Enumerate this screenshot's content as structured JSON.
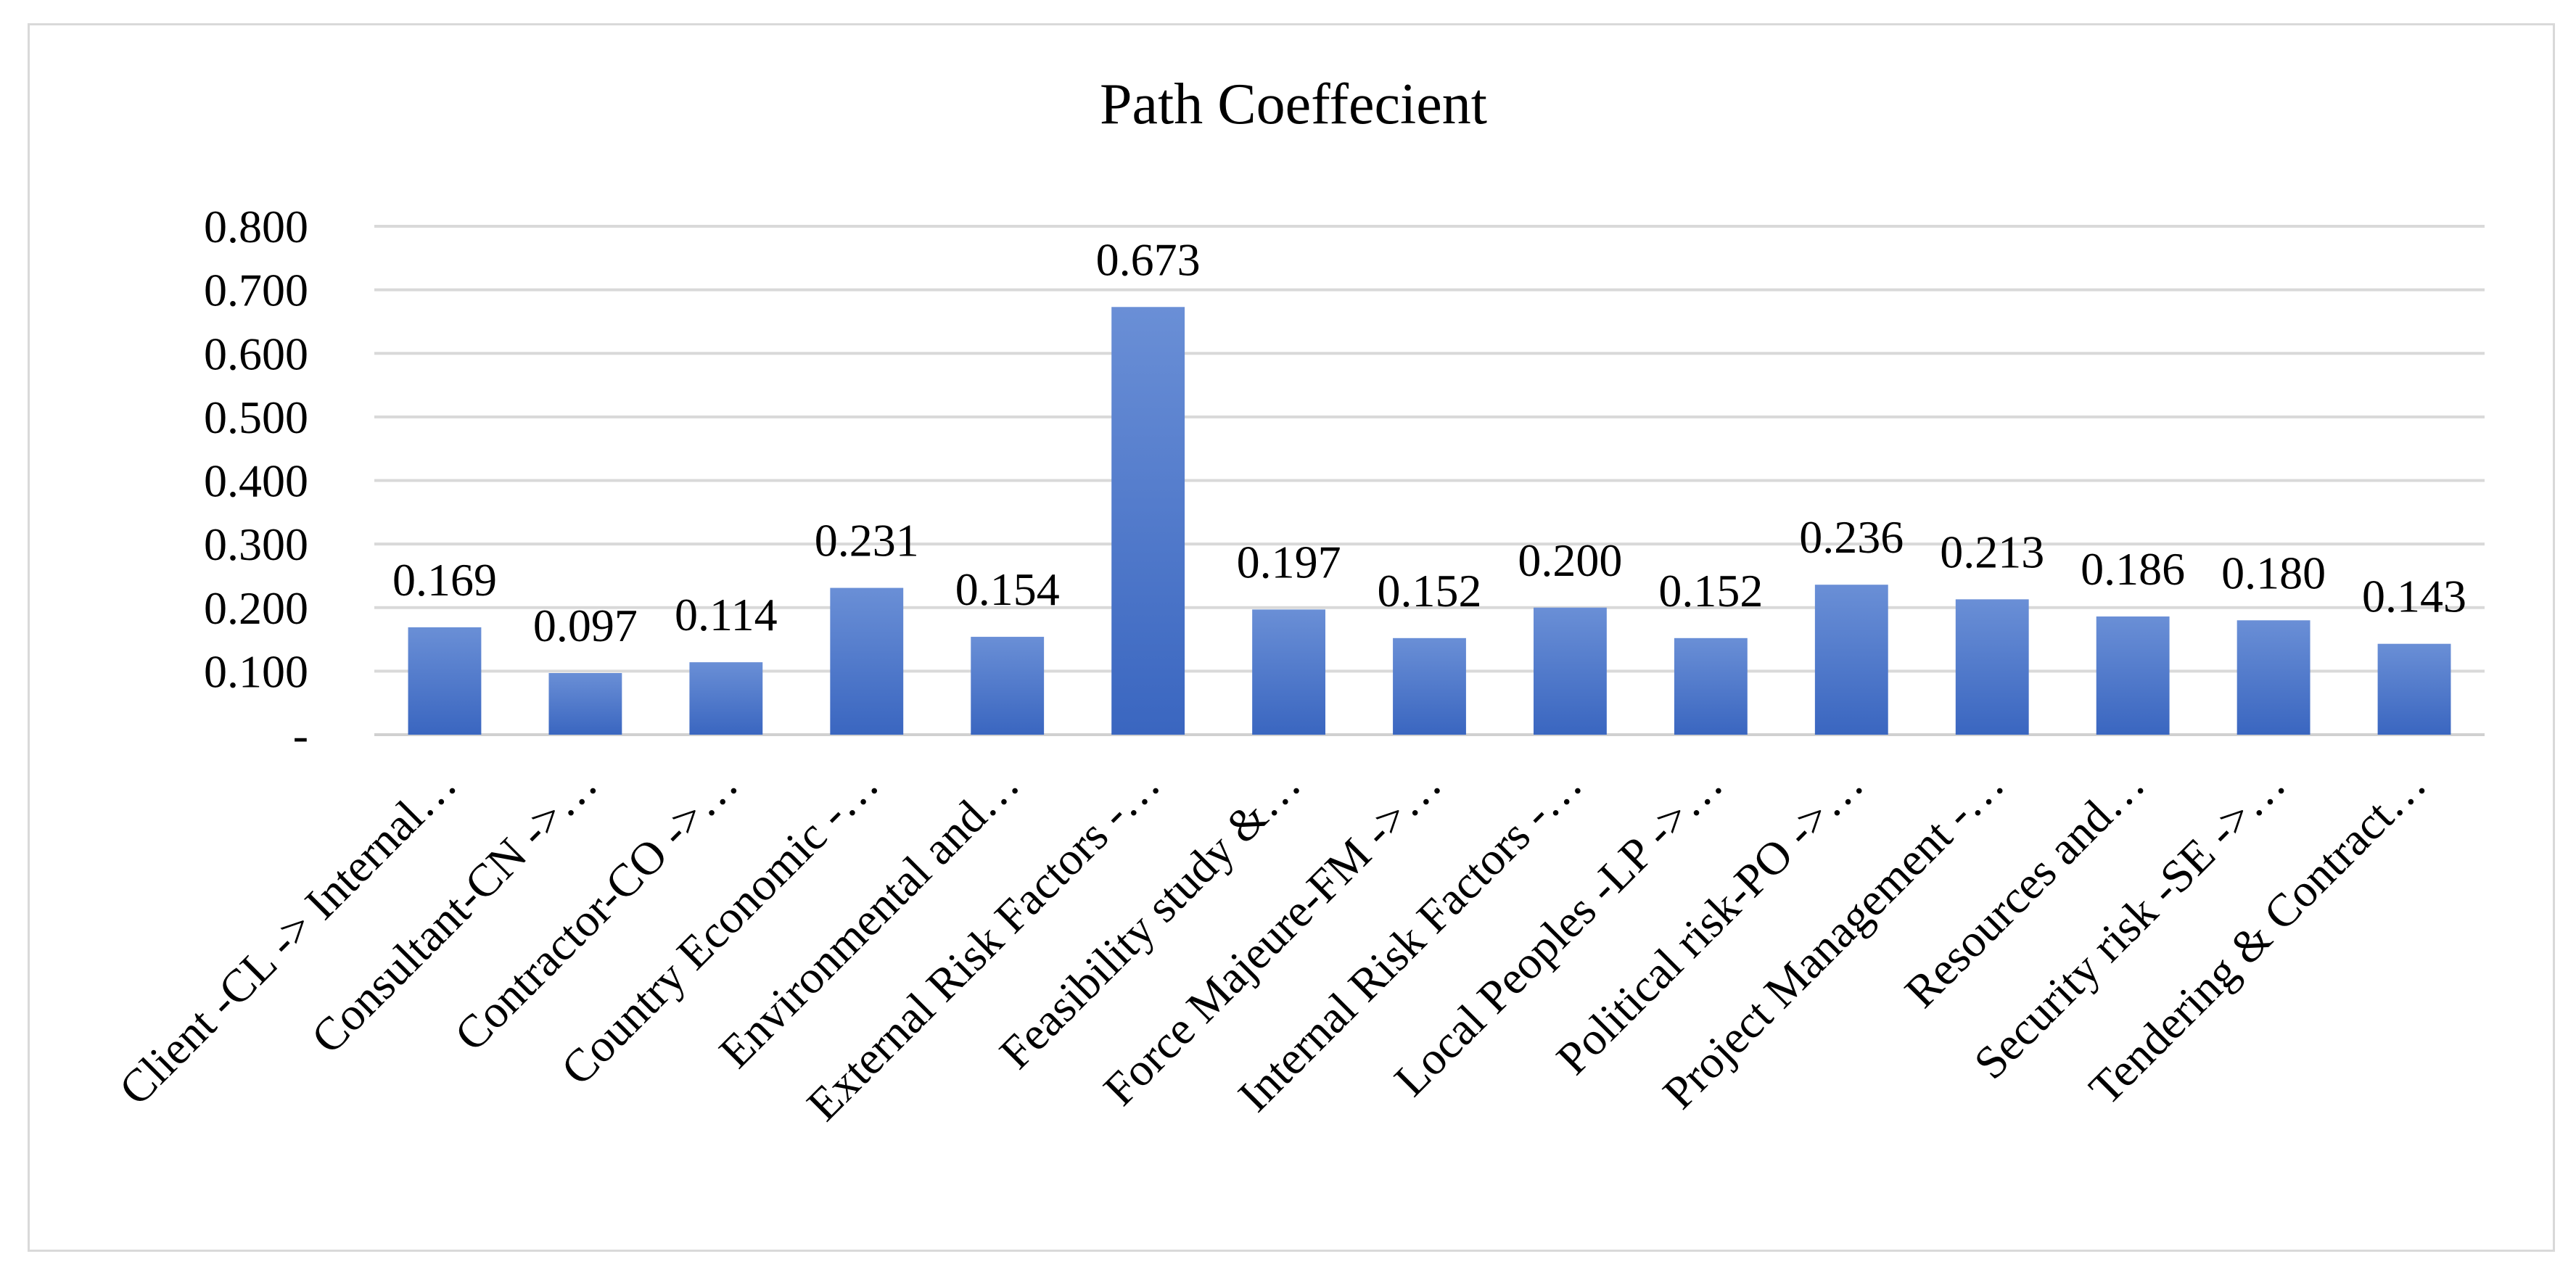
{
  "chart_data": {
    "type": "bar",
    "title": "Path Coeffecient",
    "xlabel": "",
    "ylabel": "",
    "ylim": [
      0,
      0.8
    ],
    "yticks": [
      0,
      0.1,
      0.2,
      0.3,
      0.4,
      0.5,
      0.6,
      0.7,
      0.8
    ],
    "ytick_labels": [
      "-",
      "0.100",
      "0.200",
      "0.300",
      "0.400",
      "0.500",
      "0.600",
      "0.700",
      "0.800"
    ],
    "grid": true,
    "legend": "none",
    "bar_color": "#4472c4",
    "categories": [
      "Client -CL -> Internal…",
      "Consultant-CN ->…",
      "Contractor-CO ->…",
      "Country Economic -…",
      "Environmental and…",
      "External Risk Factors -…",
      "Feasibility study &…",
      "Force Majeure-FM ->…",
      "Internal Risk Factors -…",
      "Local Peoples -LP ->…",
      "Political risk-PO ->…",
      "Project Management -…",
      "Resources and…",
      "Security risk -SE ->…",
      "Tendering & Contract…"
    ],
    "values": [
      0.169,
      0.097,
      0.114,
      0.231,
      0.154,
      0.673,
      0.197,
      0.152,
      0.2,
      0.152,
      0.236,
      0.213,
      0.186,
      0.18,
      0.143
    ],
    "data_labels": [
      "0.169",
      "0.097",
      "0.114",
      "0.231",
      "0.154",
      "0.673",
      "0.197",
      "0.152",
      "0.200",
      "0.152",
      "0.236",
      "0.213",
      "0.186",
      "0.180",
      "0.143"
    ]
  }
}
